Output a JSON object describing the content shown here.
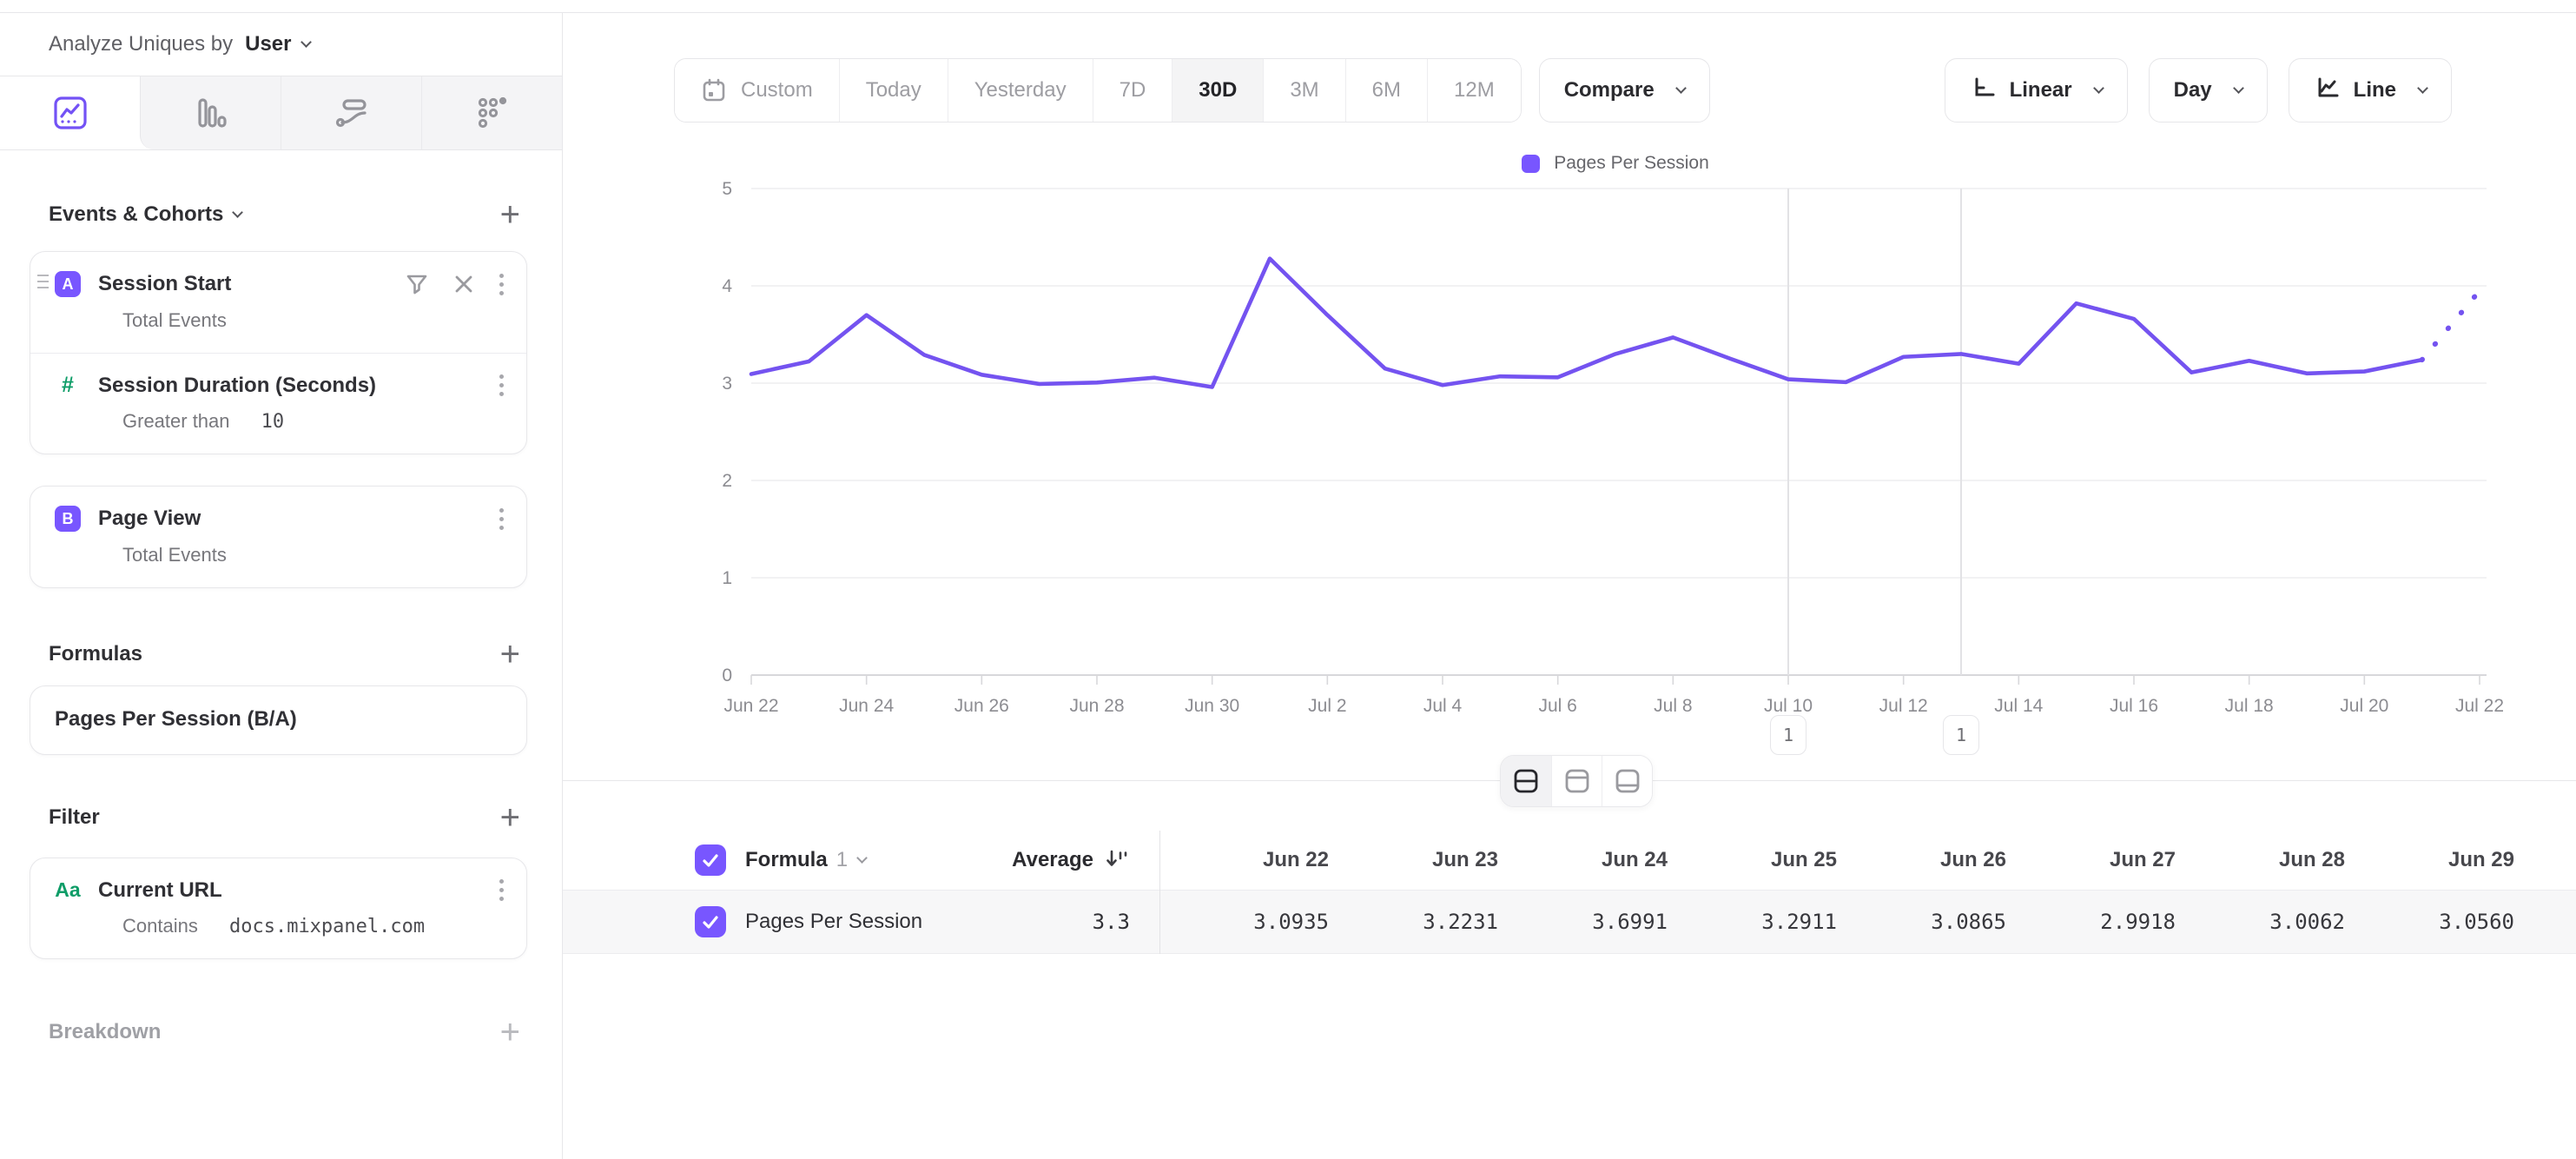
{
  "topbar": {
    "analyze_label": "Analyze Uniques by",
    "analyze_value": "User"
  },
  "sidebar": {
    "tabs": [
      {
        "icon": "insights-chart-icon",
        "active": true
      },
      {
        "icon": "bar-chart-icon",
        "active": false
      },
      {
        "icon": "flows-icon",
        "active": false
      },
      {
        "icon": "retention-icon",
        "active": false
      }
    ],
    "events": {
      "title": "Events & Cohorts",
      "session_start": {
        "badge": "A",
        "title": "Session Start",
        "subtitle": "Total Events"
      },
      "session_duration": {
        "icon": "#",
        "title": "Session Duration (Seconds)",
        "operator": "Greater than",
        "value": "10"
      },
      "page_view": {
        "badge": "B",
        "title": "Page View",
        "subtitle": "Total Events"
      }
    },
    "formulas": {
      "title": "Formulas",
      "formula_name": "Pages Per Session (B/A)"
    },
    "filter": {
      "title": "Filter",
      "icon_label": "Aa",
      "property": "Current URL",
      "operator": "Contains",
      "value": "docs.mixpanel.com"
    },
    "breakdown_title": "Breakdown"
  },
  "toolbar": {
    "date_ranges": [
      "Custom",
      "Today",
      "Yesterday",
      "7D",
      "30D",
      "3M",
      "6M",
      "12M"
    ],
    "selected_range": "30D",
    "compare_label": "Compare",
    "scale_label": "Linear",
    "interval_label": "Day",
    "chart_type_label": "Line"
  },
  "chart_data": {
    "type": "line",
    "series_name": "Pages Per Session",
    "x": [
      "Jun 22",
      "Jun 23",
      "Jun 24",
      "Jun 25",
      "Jun 26",
      "Jun 27",
      "Jun 28",
      "Jun 29",
      "Jun 30",
      "Jul 1",
      "Jul 2",
      "Jul 3",
      "Jul 4",
      "Jul 5",
      "Jul 6",
      "Jul 7",
      "Jul 8",
      "Jul 9",
      "Jul 10",
      "Jul 11",
      "Jul 12",
      "Jul 13",
      "Jul 14",
      "Jul 15",
      "Jul 16",
      "Jul 17",
      "Jul 18",
      "Jul 19",
      "Jul 20",
      "Jul 21",
      "Jul 22"
    ],
    "values": [
      3.0935,
      3.2231,
      3.6991,
      3.2911,
      3.0865,
      2.9918,
      3.0062,
      3.056,
      2.96,
      4.28,
      3.7,
      3.15,
      2.98,
      3.07,
      3.06,
      3.3,
      3.47,
      3.25,
      3.04,
      3.01,
      3.27,
      3.3,
      3.2,
      3.82,
      3.66,
      3.11,
      3.23,
      3.1,
      3.12,
      3.24,
      3.95
    ],
    "projected_from_index": 29,
    "ylim": [
      0,
      5
    ],
    "yticks": [
      0,
      1,
      2,
      3,
      4,
      5
    ],
    "x_label_every": 2,
    "grid": "horizontal",
    "legend_position": "top-center",
    "line_color": "#7453f0",
    "annotations": [
      {
        "x": "Jul 10",
        "label": "1"
      },
      {
        "x": "Jul 13",
        "label": "1"
      }
    ]
  },
  "view_toggle": {
    "options": [
      "split-view",
      "chart-only",
      "table-only"
    ],
    "active": "split-view"
  },
  "table": {
    "name_header": "Formula",
    "name_index": "1",
    "average_header": "Average",
    "columns": [
      "Jun 22",
      "Jun 23",
      "Jun 24",
      "Jun 25",
      "Jun 26",
      "Jun 27",
      "Jun 28",
      "Jun 29"
    ],
    "rows": [
      {
        "label": "Pages Per Session",
        "average": "3.3",
        "values": [
          "3.0935",
          "3.2231",
          "3.6991",
          "3.2911",
          "3.0865",
          "2.9918",
          "3.0062",
          "3.0560"
        ],
        "checked": true
      }
    ]
  }
}
